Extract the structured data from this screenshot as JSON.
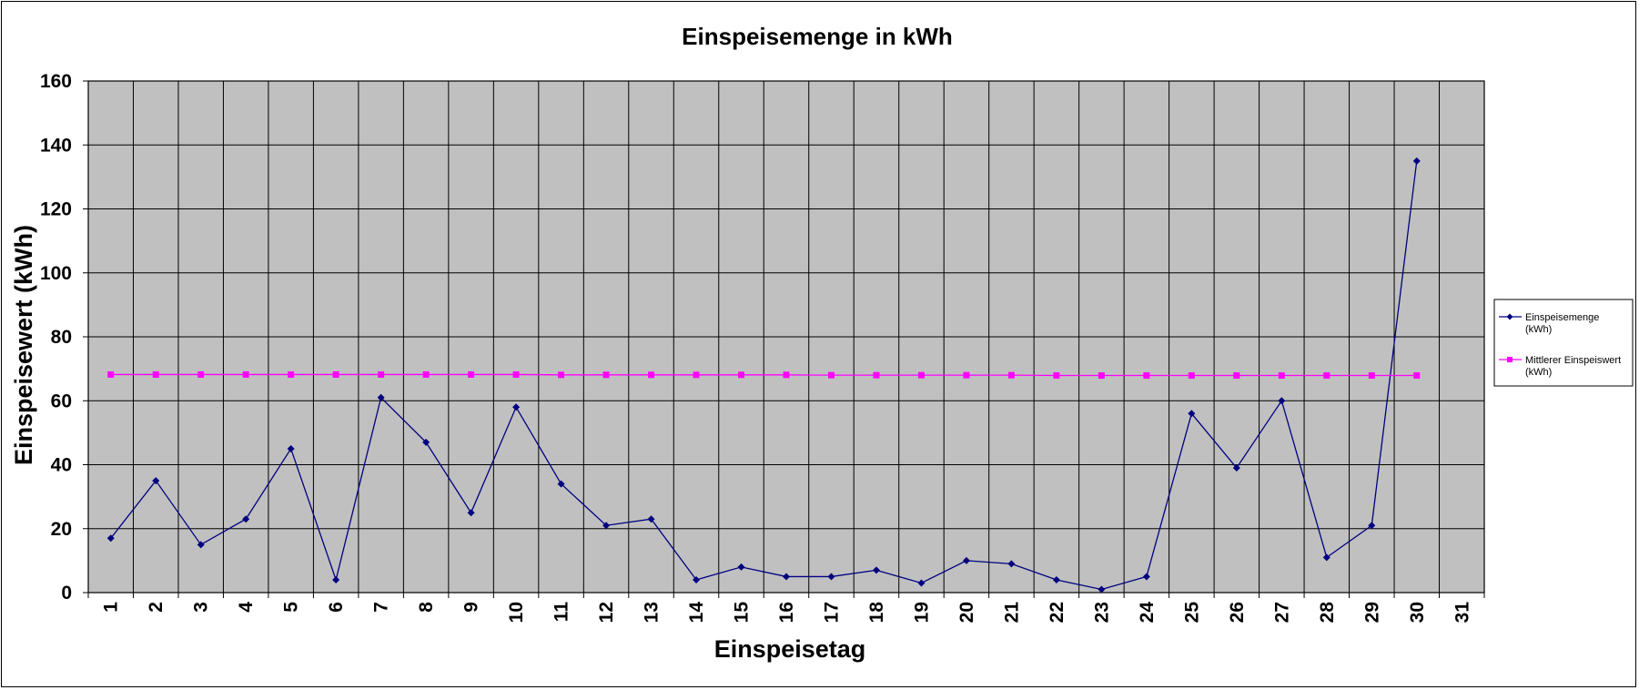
{
  "chart_data": {
    "type": "line",
    "title": "Einspeisemenge in kWh",
    "xlabel": "Einspeisetag",
    "ylabel": "Einspeisewert  (kWh)",
    "categories": [
      "1",
      "2",
      "3",
      "4",
      "5",
      "6",
      "7",
      "8",
      "9",
      "10",
      "11",
      "12",
      "13",
      "14",
      "15",
      "16",
      "17",
      "18",
      "19",
      "20",
      "21",
      "22",
      "23",
      "24",
      "25",
      "26",
      "27",
      "28",
      "29",
      "30",
      "31"
    ],
    "ylim": [
      0,
      160
    ],
    "yticks": [
      0,
      20,
      40,
      60,
      80,
      100,
      120,
      140,
      160
    ],
    "grid": true,
    "legend_position": "right",
    "series": [
      {
        "name": "Einspeisemenge (kWh)",
        "legend_lines": [
          "Einspeisemenge",
          "(kWh)"
        ],
        "color": "#000080",
        "marker": "diamond",
        "values": [
          17,
          35,
          15,
          23,
          45,
          4,
          61,
          47,
          25,
          58,
          34,
          21,
          23,
          4,
          8,
          5,
          5,
          7,
          3,
          10,
          9,
          4,
          1,
          5,
          56,
          39,
          60,
          11,
          21,
          135,
          null
        ]
      },
      {
        "name": "Mittlerer Einspeiswert (kWh)",
        "legend_lines": [
          "Mittlerer Einspeiswert",
          "(kWh)"
        ],
        "color": "#ff00ff",
        "marker": "square",
        "values": [
          68.2,
          68.2,
          68.2,
          68.2,
          68.2,
          68.2,
          68.2,
          68.2,
          68.2,
          68.2,
          68.1,
          68.1,
          68.1,
          68.1,
          68.1,
          68.1,
          68.0,
          68.0,
          68.0,
          68.0,
          68.0,
          67.9,
          67.9,
          67.9,
          67.9,
          67.9,
          67.9,
          67.9,
          67.9,
          67.9,
          null
        ]
      }
    ]
  },
  "colors": {
    "plot_background": "#c0c0c0",
    "gridline": "#000000"
  }
}
